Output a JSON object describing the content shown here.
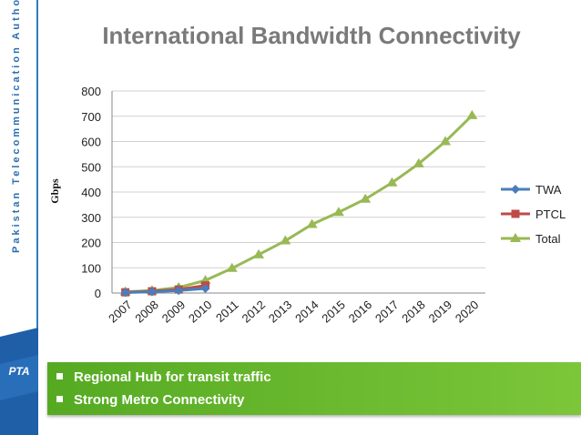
{
  "sidebar": {
    "org_name": "Pakistan Telecommunication Authority",
    "logo_text": "PTA"
  },
  "slide_title": "International Bandwidth Connectivity",
  "chart_data": {
    "type": "line",
    "title": "International Bandwidth Connectivity",
    "xlabel": "",
    "ylabel": "Gbps",
    "ylim": [
      0,
      800
    ],
    "yticks": [
      0,
      100,
      200,
      300,
      400,
      500,
      600,
      700,
      800
    ],
    "grid": true,
    "legend_position": "right",
    "categories": [
      "2007",
      "2008",
      "2009",
      "2010",
      "2011",
      "2012",
      "2013",
      "2014",
      "2015",
      "2016",
      "2017",
      "2018",
      "2019",
      "2020"
    ],
    "series": [
      {
        "name": "TWA",
        "color": "#4a7ebb",
        "marker": "diamond",
        "values": [
          2,
          5,
          10,
          18,
          null,
          null,
          null,
          null,
          null,
          null,
          null,
          null,
          null,
          null
        ]
      },
      {
        "name": "PTCL",
        "color": "#be4b48",
        "marker": "square",
        "values": [
          3,
          7,
          14,
          30,
          null,
          null,
          null,
          null,
          null,
          null,
          null,
          null,
          null,
          null
        ]
      },
      {
        "name": "Total",
        "color": "#98b954",
        "marker": "triangle",
        "values": [
          5,
          10,
          22,
          50,
          98,
          152,
          207,
          272,
          320,
          372,
          437,
          512,
          600,
          703
        ]
      }
    ]
  },
  "bullets": [
    "Regional Hub for transit traffic",
    "Strong Metro Connectivity"
  ]
}
